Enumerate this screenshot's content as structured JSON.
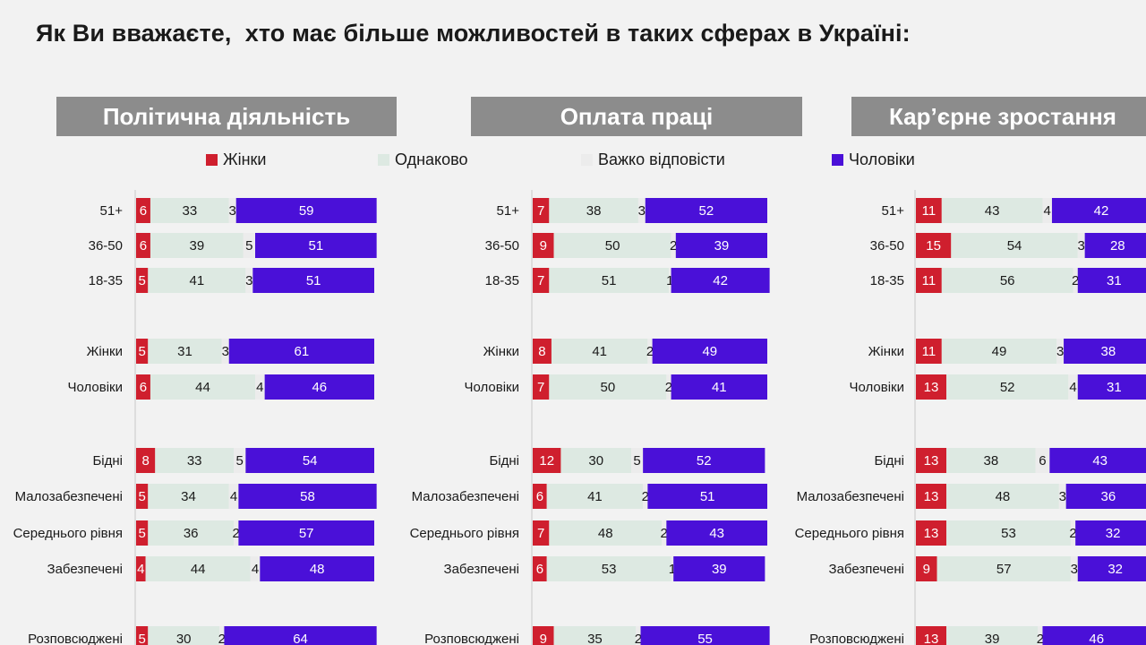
{
  "page": {
    "title": "Як Ви вважаєте,  хто має більше можливостей в таких сферах в Україні:"
  },
  "legend": [
    {
      "label": "Жінки",
      "color": "#cf1f2e"
    },
    {
      "label": "Однаково",
      "color": "#dde9e2"
    },
    {
      "label": "Важко відповісти",
      "color": "#ececec"
    },
    {
      "label": "Чоловіки",
      "color": "#4a10d8"
    }
  ],
  "chart_data": [
    {
      "type": "bar",
      "stacked": true,
      "orientation": "horizontal",
      "title": "Політична діяльність",
      "series_names": [
        "Жінки",
        "Однаково",
        "Важко відповісти",
        "Чоловіки"
      ],
      "groups": [
        {
          "rows": [
            {
              "label": "51+",
              "values": [
                6,
                33,
                3,
                59
              ]
            },
            {
              "label": "36-50",
              "values": [
                6,
                39,
                5,
                51
              ]
            },
            {
              "label": "18-35",
              "values": [
                5,
                41,
                3,
                51
              ]
            }
          ]
        },
        {
          "rows": [
            {
              "label": "Жінки",
              "values": [
                5,
                31,
                3,
                61
              ]
            },
            {
              "label": "Чоловіки",
              "values": [
                6,
                44,
                4,
                46
              ]
            }
          ]
        },
        {
          "rows": [
            {
              "label": "Бідні",
              "values": [
                8,
                33,
                5,
                54
              ]
            },
            {
              "label": "Малозабезпечені",
              "values": [
                5,
                34,
                4,
                58
              ]
            },
            {
              "label": "Середнього рівня",
              "values": [
                5,
                36,
                2,
                57
              ]
            },
            {
              "label": "Забезпечені",
              "values": [
                4,
                44,
                4,
                48
              ]
            }
          ]
        },
        {
          "rows": [
            {
              "label": "Розповсюджені",
              "values": [
                5,
                30,
                2,
                64
              ]
            }
          ]
        }
      ]
    },
    {
      "type": "bar",
      "stacked": true,
      "orientation": "horizontal",
      "title": "Оплата праці",
      "series_names": [
        "Жінки",
        "Однаково",
        "Важко відповісти",
        "Чоловіки"
      ],
      "groups": [
        {
          "rows": [
            {
              "label": "51+",
              "values": [
                7,
                38,
                3,
                52
              ]
            },
            {
              "label": "36-50",
              "values": [
                9,
                50,
                2,
                39
              ]
            },
            {
              "label": "18-35",
              "values": [
                7,
                51,
                1,
                42
              ]
            }
          ]
        },
        {
          "rows": [
            {
              "label": "Жінки",
              "values": [
                8,
                41,
                2,
                49
              ]
            },
            {
              "label": "Чоловіки",
              "values": [
                7,
                50,
                2,
                41
              ]
            }
          ]
        },
        {
          "rows": [
            {
              "label": "Бідні",
              "values": [
                12,
                30,
                5,
                52
              ]
            },
            {
              "label": "Малозабезпечені",
              "values": [
                6,
                41,
                2,
                51
              ]
            },
            {
              "label": "Середнього рівня",
              "values": [
                7,
                48,
                2,
                43
              ]
            },
            {
              "label": "Забезпечені",
              "values": [
                6,
                53,
                1,
                39
              ]
            }
          ]
        },
        {
          "rows": [
            {
              "label": "Розповсюджені",
              "values": [
                9,
                35,
                2,
                55
              ]
            }
          ]
        }
      ]
    },
    {
      "type": "bar",
      "stacked": true,
      "orientation": "horizontal",
      "title": "Кар’єрне зростання",
      "series_names": [
        "Жінки",
        "Однаково",
        "Важко відповісти",
        "Чоловіки"
      ],
      "groups": [
        {
          "rows": [
            {
              "label": "51+",
              "values": [
                11,
                43,
                4,
                42
              ]
            },
            {
              "label": "36-50",
              "values": [
                15,
                54,
                3,
                28
              ]
            },
            {
              "label": "18-35",
              "values": [
                11,
                56,
                2,
                31
              ]
            }
          ]
        },
        {
          "rows": [
            {
              "label": "Жінки",
              "values": [
                11,
                49,
                3,
                38
              ]
            },
            {
              "label": "Чоловіки",
              "values": [
                13,
                52,
                4,
                31
              ]
            }
          ]
        },
        {
          "rows": [
            {
              "label": "Бідні",
              "values": [
                13,
                38,
                6,
                43
              ]
            },
            {
              "label": "Малозабезпечені",
              "values": [
                13,
                48,
                3,
                36
              ]
            },
            {
              "label": "Середнього рівня",
              "values": [
                13,
                53,
                2,
                32
              ]
            },
            {
              "label": "Забезпечені",
              "values": [
                9,
                57,
                3,
                32
              ]
            }
          ]
        },
        {
          "rows": [
            {
              "label": "Розповсюджені",
              "values": [
                13,
                39,
                2,
                46
              ]
            }
          ]
        }
      ]
    }
  ]
}
